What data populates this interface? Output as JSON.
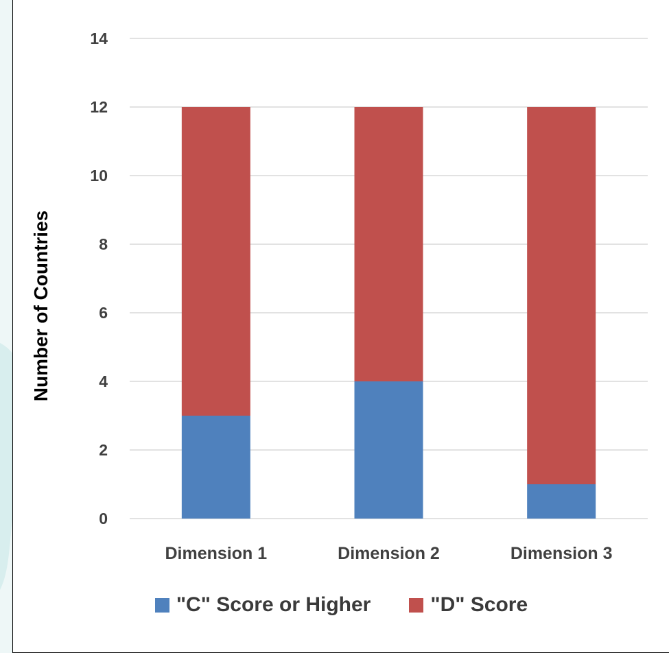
{
  "colors": {
    "series_c": "#4F81BD",
    "series_d": "#C0504D",
    "grid": "#d9d9d9",
    "tick_text": "#404040"
  },
  "chart_data": {
    "type": "bar",
    "stacked": true,
    "categories": [
      "Dimension 1",
      "Dimension 2",
      "Dimension 3"
    ],
    "series": [
      {
        "name": "\"C\" Score or Higher",
        "values": [
          3,
          4,
          1
        ]
      },
      {
        "name": "\"D\" Score",
        "values": [
          9,
          8,
          11
        ]
      }
    ],
    "title": "",
    "xlabel": "",
    "ylabel": "Number of Countries",
    "ylim": [
      0,
      14
    ],
    "yticks": [
      "0",
      "2",
      "4",
      "6",
      "8",
      "10",
      "12",
      "14"
    ],
    "grid": true,
    "legend_position": "bottom"
  }
}
